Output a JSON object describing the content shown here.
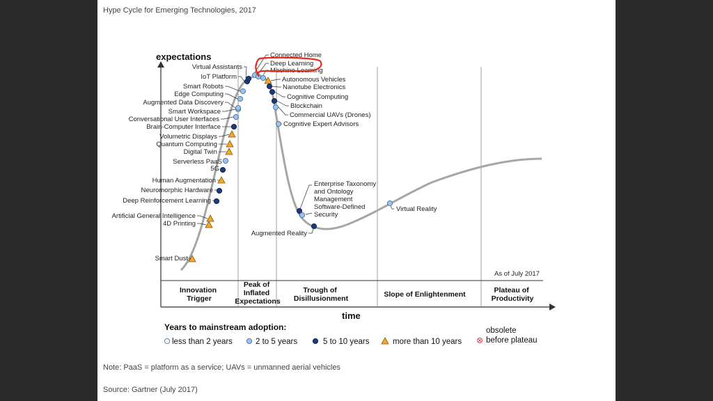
{
  "header": {
    "title": "Hype Cycle for Emerging Technologies, 2017"
  },
  "axes": {
    "y_label": "expectations",
    "x_label": "time"
  },
  "as_of": "As of July 2017",
  "phases": [
    [
      "Innovation",
      "Trigger"
    ],
    [
      "Peak of",
      "Inflated",
      "Expectations"
    ],
    [
      "Trough of",
      "Disillusionment"
    ],
    [
      "Slope of Enlightenment"
    ],
    [
      "Plateau of",
      "Productivity"
    ]
  ],
  "legend": {
    "title": "Years to mainstream adoption:",
    "items": [
      {
        "label": "less than 2 years",
        "marker": "circle-white"
      },
      {
        "label": "2 to 5 years",
        "marker": "circle-light"
      },
      {
        "label": "5 to 10 years",
        "marker": "circle-dark"
      },
      {
        "label": "more than 10 years",
        "marker": "triangle"
      }
    ],
    "obsolete": [
      "obsolete",
      "before plateau"
    ]
  },
  "colors": {
    "curve": "#a6a6a6",
    "circle_white": "#ffffff",
    "circle_light": "#9dc3e6",
    "circle_dark": "#1f3a7a",
    "triangle": "#f0a830",
    "highlight": "#e8281f",
    "obsolete": "#d9534f"
  },
  "technologies_left": [
    {
      "label": "Smart Dust",
      "marker": "triangle"
    },
    {
      "label": "4D Printing",
      "marker": "triangle"
    },
    {
      "label": "Artificial General Intelligence",
      "marker": "triangle"
    },
    {
      "label": "Deep Reinforcement Learning",
      "marker": "circle-dark"
    },
    {
      "label": "Neuromorphic Hardware",
      "marker": "circle-dark"
    },
    {
      "label": "Human Augmentation",
      "marker": "triangle"
    },
    {
      "label": "5G",
      "marker": "circle-dark"
    },
    {
      "label": "Serverless PaaS",
      "marker": "circle-light"
    },
    {
      "label": "Digital Twin",
      "marker": "triangle"
    },
    {
      "label": "Quantum Computing",
      "marker": "triangle"
    },
    {
      "label": "Volumetric Displays",
      "marker": "triangle"
    },
    {
      "label": "Brain-Computer Interface",
      "marker": "circle-dark"
    },
    {
      "label": "Conversational User Interfaces",
      "marker": "circle-light"
    },
    {
      "label": "Smart Workspace",
      "marker": "circle-light"
    },
    {
      "label": "Augmented Data Discovery",
      "marker": "circle-light"
    },
    {
      "label": "Edge Computing",
      "marker": "circle-light"
    },
    {
      "label": "Smart Robots",
      "marker": "circle-light"
    },
    {
      "label": "IoT Platform",
      "marker": "circle-dark"
    },
    {
      "label": "Virtual Assistants",
      "marker": "circle-dark"
    }
  ],
  "technologies_peak": [
    {
      "label": "Connected Home",
      "marker": "circle-light"
    },
    {
      "label": "Deep Learning",
      "marker": "circle-light",
      "highlighted": true
    },
    {
      "label": "Machine Learning",
      "marker": "circle-light"
    }
  ],
  "technologies_right": [
    {
      "label": "Autonomous Vehicles",
      "marker": "triangle"
    },
    {
      "label": "Nanotube Electronics",
      "marker": "circle-dark"
    },
    {
      "label": "Cognitive Computing",
      "marker": "circle-dark"
    },
    {
      "label": "Blockchain",
      "marker": "circle-dark"
    },
    {
      "label": "Commercial UAVs (Drones)",
      "marker": "circle-light"
    },
    {
      "label": "Cognitive Expert Advisors",
      "marker": "circle-light"
    }
  ],
  "technologies_trough": [
    {
      "label": "Enterprise Taxonomy and Ontology Management",
      "lines": [
        "Enterprise Taxonomy",
        "and Ontology",
        "Management"
      ],
      "marker": "circle-dark"
    },
    {
      "label": "Software-Defined Security",
      "lines": [
        "Software-Defined",
        "Security"
      ],
      "marker": "circle-light"
    },
    {
      "label": "Augmented Reality",
      "marker": "circle-dark"
    },
    {
      "label": "Virtual Reality",
      "marker": "circle-light"
    }
  ],
  "footer": {
    "note": "Note: PaaS = platform as a service; UAVs = unmanned aerial vehicles",
    "source": "Source: Gartner (July 2017)"
  }
}
